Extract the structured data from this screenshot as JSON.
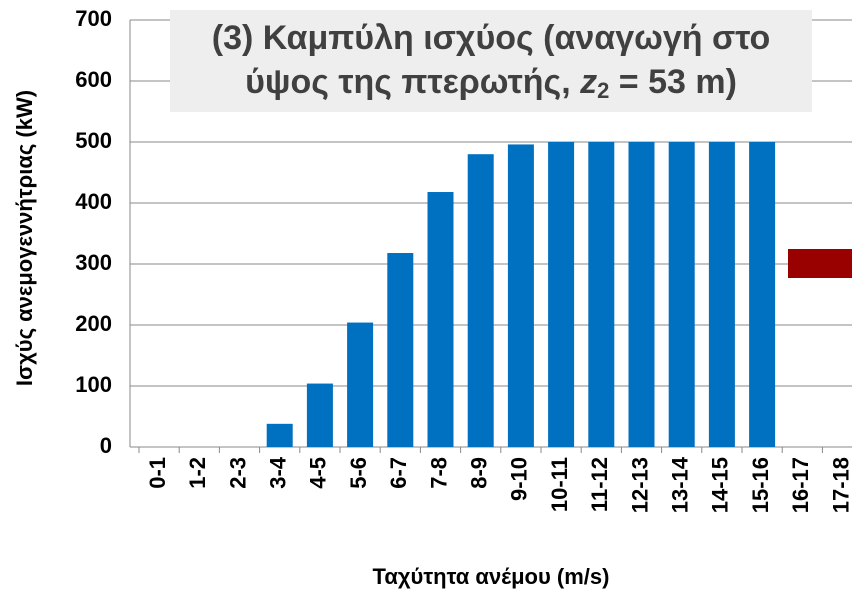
{
  "chart_data": {
    "type": "bar",
    "title": {
      "line1": "(3) Καμπύλη ισχύος (αναγωγή στο",
      "line2": [
        "ύψος της πτερωτής, ",
        "z",
        "2",
        " = 53 m)"
      ]
    },
    "x_label": "Ταχύτητα ανέμου (m/s)",
    "y_label": "Ισχύς ανεμογεννήτριας (kW)",
    "categories": [
      "0-1",
      "1-2",
      "2-3",
      "3-4",
      "4-5",
      "5-6",
      "6-7",
      "7-8",
      "8-9",
      "9-10",
      "10-11",
      "11-12",
      "12-13",
      "13-14",
      "14-15",
      "15-16",
      "16-17",
      "17-18"
    ],
    "values": [
      0,
      0,
      0,
      38,
      104,
      204,
      318,
      418,
      480,
      496,
      500,
      500,
      500,
      500,
      500,
      500,
      0,
      0
    ],
    "color": "#0070c0",
    "ylim": [
      0,
      700
    ],
    "yticks": [
      0,
      100,
      200,
      300,
      400,
      500,
      600,
      700
    ],
    "grid": true
  }
}
